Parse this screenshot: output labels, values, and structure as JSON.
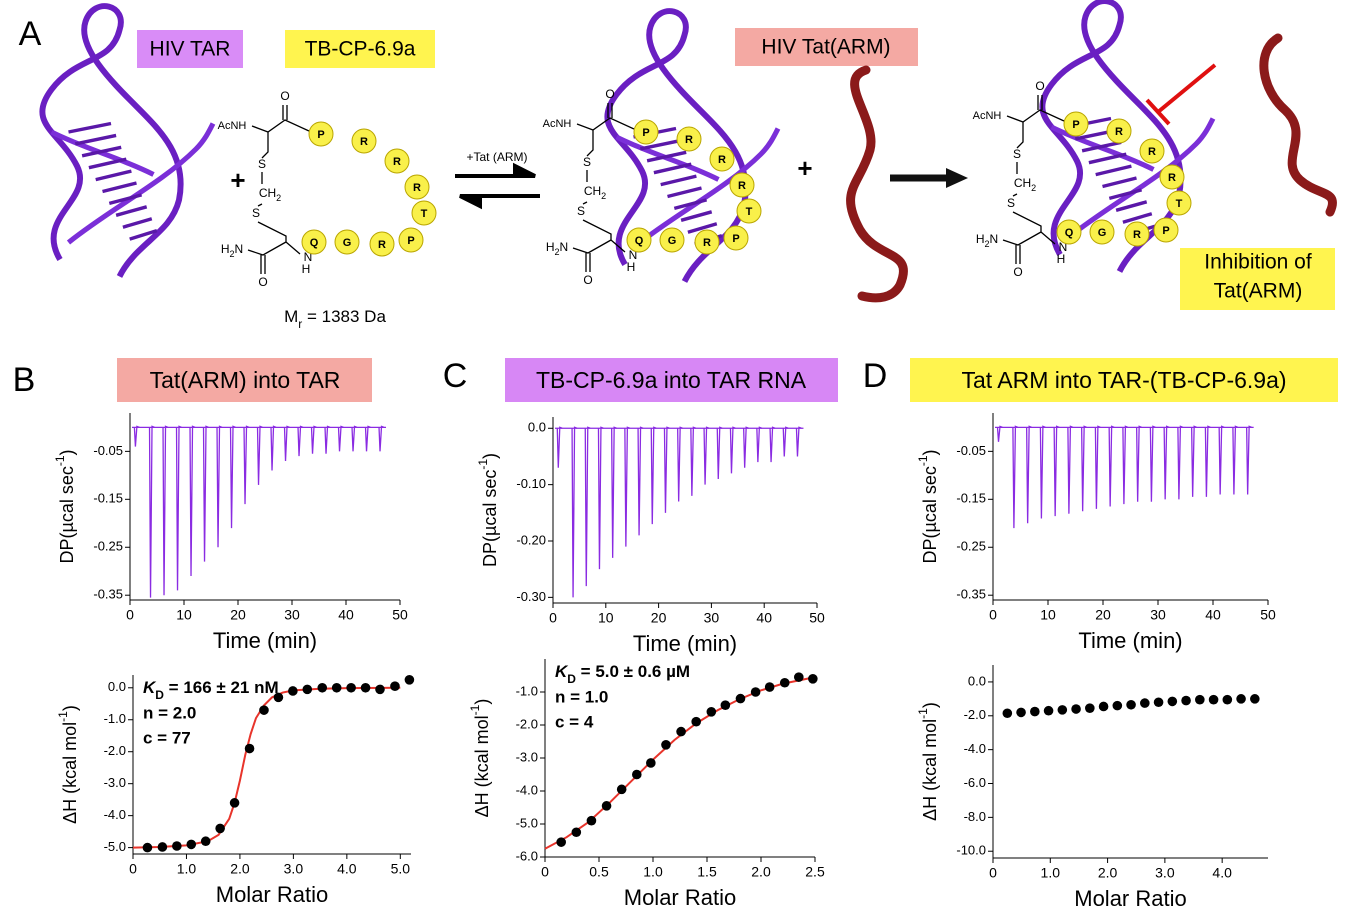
{
  "panel_a": {
    "label": "A",
    "tar": "HIV TAR",
    "peptide_name": "TB-CP-6.9a",
    "tat": "HIV Tat(ARM)",
    "plus": "+",
    "equilibrium": "+Tat (ARM)",
    "mass": {
      "symbol": "M",
      "subscript": "r",
      "text": " = 1383 Da"
    },
    "inhibition": [
      "Inhibition of",
      "Tat(ARM)"
    ],
    "structure": {
      "residues": [
        "P",
        "R",
        "R",
        "R",
        "T",
        "P",
        "R",
        "G",
        "Q"
      ],
      "acnh": "AcNH",
      "oxygen": "O",
      "sulfur": "S",
      "methylene": [
        "CH",
        "2"
      ],
      "amine": [
        "H",
        "2",
        "N"
      ],
      "nitrogen": "N",
      "hydrogen": "H"
    }
  },
  "panels": [
    {
      "label": "B",
      "title": "Tat(ARM) into TAR"
    },
    {
      "label": "C",
      "title": "TB-CP-6.9a into TAR RNA"
    },
    {
      "label": "D",
      "title": "Tat ARM into TAR-(TB-CP-6.9a)"
    }
  ],
  "chart_data": [
    {
      "type": "spike",
      "color": "#8a2be2",
      "x": [
        1.0,
        3.8,
        6.3,
        8.8,
        11.3,
        13.8,
        16.3,
        18.8,
        21.3,
        23.8,
        26.3,
        28.8,
        31.3,
        33.8,
        36.3,
        38.8,
        41.3,
        43.8,
        46.3
      ],
      "values": [
        -0.04,
        -0.355,
        -0.35,
        -0.34,
        -0.31,
        -0.28,
        -0.25,
        -0.21,
        -0.16,
        -0.12,
        -0.09,
        -0.07,
        -0.06,
        -0.055,
        -0.055,
        -0.05,
        -0.05,
        -0.05,
        -0.05
      ],
      "xlim": [
        0,
        50
      ],
      "xticks": [
        0,
        10,
        20,
        30,
        40,
        50
      ],
      "ylim": [
        -0.36,
        0.03
      ],
      "yticks": [
        -0.05,
        -0.15,
        -0.25,
        -0.35
      ],
      "xlabel": "Time (min)",
      "ylabel": [
        "DP(µcal sec",
        "-1",
        ")"
      ]
    },
    {
      "type": "spike",
      "color": "#8a2be2",
      "x": [
        1.0,
        3.8,
        6.3,
        8.8,
        11.3,
        13.8,
        16.3,
        18.8,
        21.3,
        23.8,
        26.3,
        28.8,
        31.3,
        33.8,
        36.3,
        38.8,
        41.3,
        43.8,
        46.3
      ],
      "values": [
        -0.07,
        -0.3,
        -0.28,
        -0.25,
        -0.23,
        -0.21,
        -0.19,
        -0.17,
        -0.15,
        -0.13,
        -0.12,
        -0.1,
        -0.09,
        -0.08,
        -0.07,
        -0.06,
        -0.06,
        -0.05,
        -0.05
      ],
      "xlim": [
        0,
        50
      ],
      "xticks": [
        0,
        10,
        20,
        30,
        40,
        50
      ],
      "ylim": [
        -0.31,
        0.02
      ],
      "yticks": [
        {
          "value": 0,
          "label": "0.0"
        },
        {
          "value": -0.1,
          "label": "-0.10"
        },
        {
          "value": -0.2,
          "label": "-0.20"
        },
        {
          "value": -0.3,
          "label": "-0.30"
        }
      ],
      "xlabel": "Time (min)",
      "ylabel": [
        "DP(µcal sec",
        "-1",
        ")"
      ]
    },
    {
      "type": "spike",
      "color": "#8a2be2",
      "x": [
        1.0,
        3.8,
        6.3,
        8.8,
        11.3,
        13.8,
        16.3,
        18.8,
        21.3,
        23.8,
        26.3,
        28.8,
        31.3,
        33.8,
        36.3,
        38.8,
        41.3,
        43.8,
        46.3
      ],
      "values": [
        -0.03,
        -0.21,
        -0.2,
        -0.19,
        -0.185,
        -0.18,
        -0.175,
        -0.17,
        -0.165,
        -0.16,
        -0.155,
        -0.155,
        -0.15,
        -0.15,
        -0.145,
        -0.145,
        -0.14,
        -0.14,
        -0.14
      ],
      "xlim": [
        0,
        50
      ],
      "xticks": [
        0,
        10,
        20,
        30,
        40,
        50
      ],
      "ylim": [
        -0.36,
        0.03
      ],
      "yticks": [
        -0.05,
        -0.15,
        -0.25,
        -0.35
      ],
      "xlabel": "Time (min)",
      "ylabel": [
        "DP(µcal sec",
        "-1",
        ")"
      ]
    },
    {
      "type": "scatter",
      "color": "#000000",
      "x": [
        0.27,
        0.55,
        0.82,
        1.09,
        1.36,
        1.63,
        1.9,
        2.18,
        2.45,
        2.72,
        2.99,
        3.26,
        3.54,
        3.81,
        4.08,
        4.35,
        4.62,
        4.9,
        5.17
      ],
      "values": [
        -5.0,
        -4.98,
        -4.95,
        -4.9,
        -4.8,
        -4.4,
        -3.6,
        -1.9,
        -0.7,
        -0.3,
        -0.1,
        -0.05,
        0,
        0,
        0,
        0,
        -0.05,
        0.05,
        0.25
      ],
      "fit": {
        "color": "#e8342b",
        "x": [
          0,
          0.5,
          1.0,
          1.4,
          1.6,
          1.8,
          1.9,
          2.0,
          2.1,
          2.2,
          2.3,
          2.45,
          2.6,
          2.8,
          3.0,
          3.5,
          4.0,
          5.0
        ],
        "values": [
          -5.0,
          -4.98,
          -4.93,
          -4.8,
          -4.6,
          -4.1,
          -3.6,
          -2.9,
          -2.1,
          -1.45,
          -0.95,
          -0.55,
          -0.3,
          -0.15,
          -0.08,
          -0.03,
          -0.01,
          0.0
        ]
      },
      "xlim": [
        0,
        5.2
      ],
      "xticks": [
        0,
        {
          "value": 1,
          "label": "1.0"
        },
        {
          "value": 2,
          "label": "2.0"
        },
        {
          "value": 3,
          "label": "3.0"
        },
        {
          "value": 4,
          "label": "4.0"
        },
        {
          "value": 5,
          "label": "5.0"
        }
      ],
      "ylim": [
        -5.2,
        0.4
      ],
      "yticks": [
        {
          "value": 0,
          "label": "0.0"
        },
        {
          "value": -1,
          "label": "-1.0"
        },
        {
          "value": -2,
          "label": "-2.0"
        },
        {
          "value": -3,
          "label": "-3.0"
        },
        {
          "value": -4,
          "label": "-4.0"
        },
        {
          "value": -5,
          "label": "-5.0"
        }
      ],
      "xlabel": "Molar Ratio",
      "ylabel": [
        "ΔH (kcal mol",
        "-1",
        ")"
      ],
      "kd": {
        "symbol": "K",
        "subscript": "D",
        "text": " = 166 ± 21 nM"
      },
      "notes": [
        "n = 2.0",
        "c = 77"
      ]
    },
    {
      "type": "scatter",
      "color": "#000000",
      "x": [
        0.15,
        0.29,
        0.43,
        0.57,
        0.71,
        0.85,
        0.98,
        1.12,
        1.26,
        1.4,
        1.54,
        1.67,
        1.81,
        1.95,
        2.08,
        2.22,
        2.35,
        2.48
      ],
      "values": [
        -5.55,
        -5.25,
        -4.9,
        -4.45,
        -3.95,
        -3.5,
        -3.15,
        -2.6,
        -2.2,
        -1.9,
        -1.6,
        -1.4,
        -1.2,
        -1.0,
        -0.85,
        -0.72,
        -0.55,
        -0.6
      ],
      "fit": {
        "color": "#e8342b",
        "x": [
          0,
          0.2,
          0.4,
          0.6,
          0.8,
          1.0,
          1.2,
          1.4,
          1.6,
          1.8,
          2.0,
          2.2,
          2.5
        ],
        "values": [
          -5.75,
          -5.4,
          -4.95,
          -4.35,
          -3.7,
          -3.05,
          -2.45,
          -1.95,
          -1.55,
          -1.22,
          -0.95,
          -0.75,
          -0.55
        ]
      },
      "xlim": [
        0,
        2.5
      ],
      "xticks": [
        0,
        0.5,
        {
          "value": 1,
          "label": "1.0"
        },
        1.5,
        {
          "value": 2,
          "label": "2.0"
        },
        2.5
      ],
      "ylim": [
        -6.0,
        0
      ],
      "yticks": [
        {
          "value": -1,
          "label": "-1.0"
        },
        {
          "value": -2,
          "label": "-2.0"
        },
        {
          "value": -3,
          "label": "-3.0"
        },
        {
          "value": -4,
          "label": "-4.0"
        },
        {
          "value": -5,
          "label": "-5.0"
        },
        {
          "value": -6,
          "label": "-6.0"
        }
      ],
      "xlabel": "Molar Ratio",
      "ylabel": [
        "ΔH (kcal mol",
        "-1",
        ")"
      ],
      "kd": {
        "symbol": "K",
        "subscript": "D",
        "text": " = 5.0 ± 0.6 µM"
      },
      "notes": [
        "n = 1.0",
        "c = 4"
      ]
    },
    {
      "type": "scatter",
      "color": "#000000",
      "x": [
        0.25,
        0.49,
        0.73,
        0.97,
        1.21,
        1.45,
        1.69,
        1.93,
        2.17,
        2.41,
        2.65,
        2.89,
        3.13,
        3.37,
        3.61,
        3.85,
        4.09,
        4.33,
        4.57
      ],
      "values": [
        -1.85,
        -1.8,
        -1.75,
        -1.7,
        -1.65,
        -1.6,
        -1.55,
        -1.45,
        -1.4,
        -1.35,
        -1.25,
        -1.2,
        -1.15,
        -1.1,
        -1.05,
        -1.05,
        -1.05,
        -1.0,
        -1.0
      ],
      "xlim": [
        0,
        4.8
      ],
      "xticks": [
        0,
        {
          "value": 1,
          "label": "1.0"
        },
        {
          "value": 2,
          "label": "2.0"
        },
        {
          "value": 3,
          "label": "3.0"
        },
        {
          "value": 4,
          "label": "4.0"
        }
      ],
      "ylim": [
        -10.4,
        1.0
      ],
      "yticks": [
        {
          "value": 0,
          "label": "0.0"
        },
        {
          "value": -2,
          "label": "-2.0"
        },
        {
          "value": -4,
          "label": "-4.0"
        },
        {
          "value": -6,
          "label": "-6.0"
        },
        {
          "value": -8,
          "label": "-8.0"
        },
        {
          "value": -10,
          "label": "-10.0"
        }
      ],
      "xlabel": "Molar Ratio",
      "ylabel": [
        "ΔH (kcal mol",
        "-1",
        ")"
      ]
    }
  ]
}
